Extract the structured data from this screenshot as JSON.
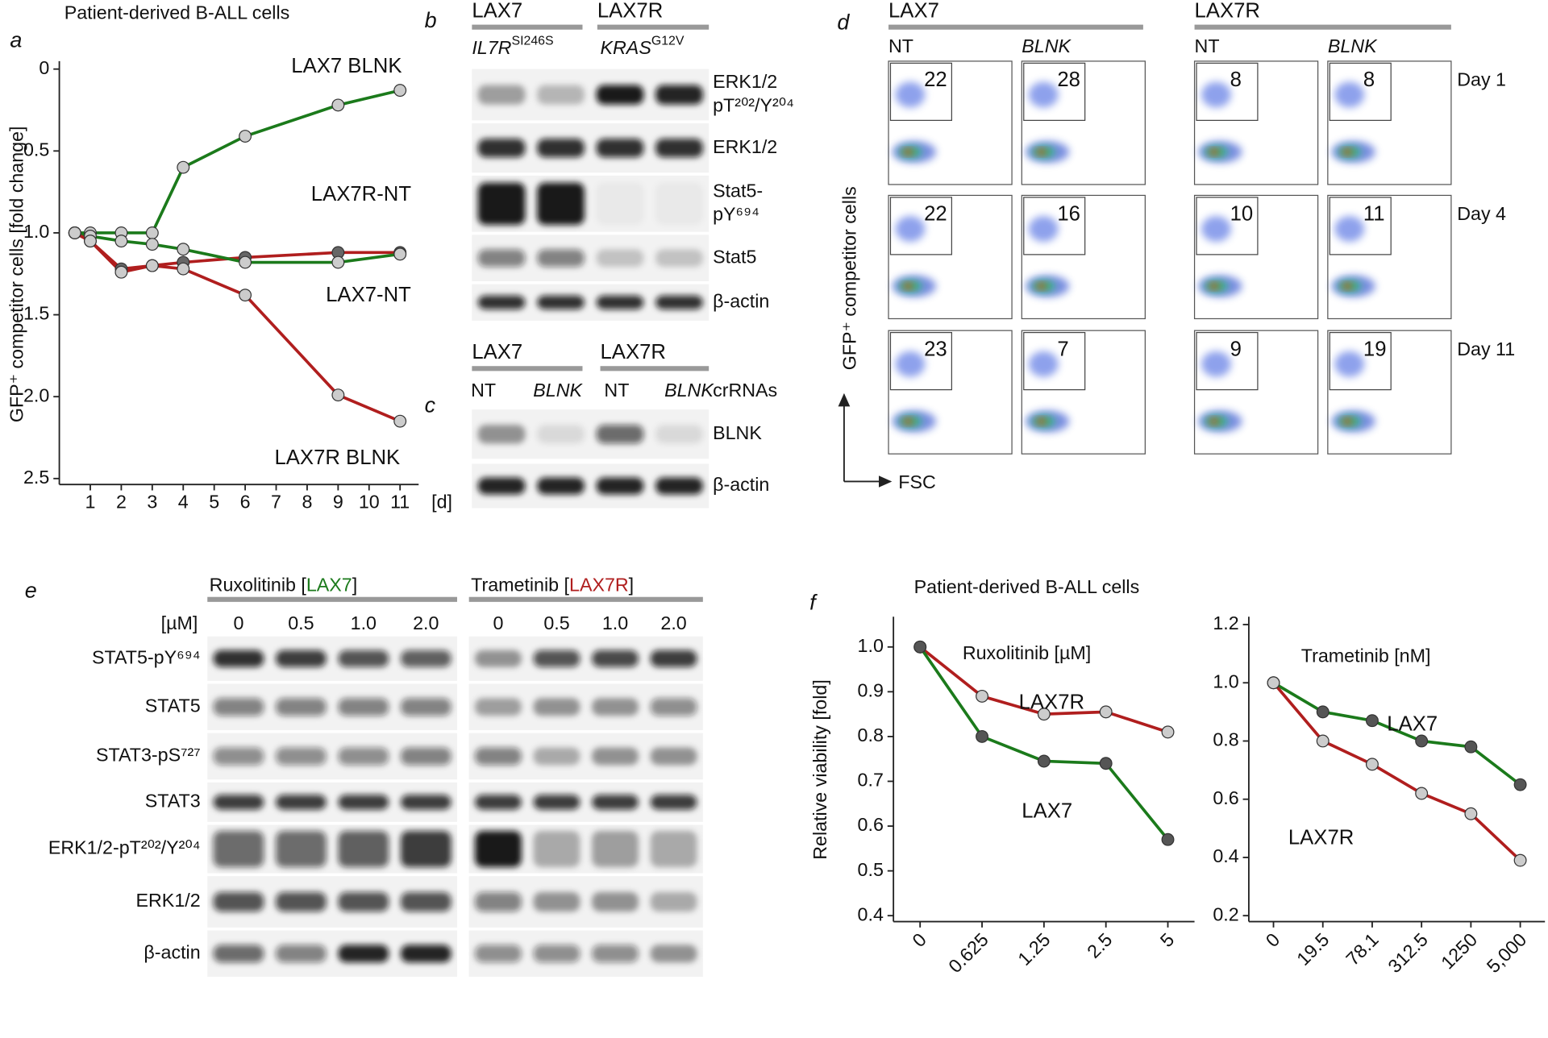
{
  "panel_labels": {
    "a": "a",
    "b": "b",
    "c": "c",
    "d": "d",
    "e": "e",
    "f": "f"
  },
  "chart_data": [
    {
      "type": "line",
      "title": "Patient-derived B-ALL cells",
      "y_label": "GFP⁺ competitor cells [fold change]",
      "x_label": "[d]",
      "x": [
        0.5,
        1,
        2,
        3,
        4,
        6,
        9,
        11
      ],
      "series": [
        {
          "name": "LAX7 BLNK",
          "color": "#1b7a1b",
          "values": [
            1.0,
            1.0,
            1.0,
            1.0,
            0.6,
            0.41,
            0.22,
            0.13
          ]
        },
        {
          "name": "LAX7R-NT",
          "color": "#b01e1e",
          "values": [
            1.0,
            1.05,
            1.22,
            1.2,
            1.18,
            1.15,
            1.12,
            1.12
          ]
        },
        {
          "name": "LAX7-NT",
          "color": "#1b7a1b",
          "values": [
            1.0,
            1.02,
            1.05,
            1.07,
            1.1,
            1.18,
            1.18,
            1.13
          ]
        },
        {
          "name": "LAX7R BLNK",
          "color": "#b01e1e",
          "values": [
            1.0,
            1.05,
            1.24,
            1.2,
            1.22,
            1.38,
            1.99,
            2.15
          ]
        }
      ],
      "xlim": [
        0,
        11.6
      ],
      "ylim": [
        2.5,
        0
      ],
      "xticks": [
        1,
        2,
        3,
        4,
        5,
        6,
        7,
        8,
        9,
        10,
        11
      ],
      "yticks": [
        0,
        0.5,
        {
          "value": 1,
          "label": "1.0"
        },
        1.5,
        {
          "value": 2,
          "label": "2.0"
        },
        2.5
      ]
    },
    {
      "type": "line",
      "title": "Patient-derived B-ALL cells",
      "subtitle": "Ruxolitinib [µM]",
      "y_label": "Relative viability [fold]",
      "categories": [
        "0",
        "0.625",
        "1.25",
        "2.5",
        "5"
      ],
      "series": [
        {
          "name": "LAX7R",
          "color": "#b01e1e",
          "values": [
            1.0,
            0.89,
            0.85,
            0.855,
            0.81
          ]
        },
        {
          "name": "LAX7",
          "color": "#1b7a1b",
          "values": [
            1.0,
            0.8,
            0.745,
            0.74,
            0.57
          ]
        }
      ],
      "ylim": [
        0.4,
        1.05
      ],
      "yticks": [
        0.4,
        0.5,
        0.6,
        0.7,
        0.8,
        0.9,
        {
          "value": 1,
          "label": "1.0"
        }
      ]
    },
    {
      "type": "line",
      "subtitle": "Trametinib [nM]",
      "categories": [
        "0",
        "19.5",
        "78.1",
        "312.5",
        "1250",
        "5,000"
      ],
      "series": [
        {
          "name": "LAX7",
          "color": "#1b7a1b",
          "values": [
            1.0,
            0.9,
            0.87,
            0.8,
            0.78,
            0.65
          ]
        },
        {
          "name": "LAX7R",
          "color": "#b01e1e",
          "values": [
            1.0,
            0.8,
            0.72,
            0.62,
            0.55,
            0.39
          ]
        }
      ],
      "ylim": [
        0.2,
        1.2
      ],
      "yticks": [
        0.2,
        0.4,
        0.6,
        0.8,
        {
          "value": 1,
          "label": "1.0"
        },
        1.2
      ]
    }
  ],
  "panel_b": {
    "groups": [
      {
        "name": "LAX7",
        "color": "#1b7a1b"
      },
      {
        "name": "LAX7R",
        "color": "#b01e1e"
      }
    ],
    "genotypes": [
      {
        "gene": "IL7R",
        "mutation": "SI246S"
      },
      {
        "gene": "KRAS",
        "mutation": "G12V"
      }
    ],
    "rows": [
      [
        "ERK1/2",
        "pT²⁰²/Y²⁰⁴"
      ],
      [
        "ERK1/2"
      ],
      [
        "Stat5-",
        "pY⁶⁹⁴"
      ],
      [
        "Stat5"
      ],
      [
        "β-actin"
      ]
    ]
  },
  "panel_c": {
    "groups": [
      {
        "name": "LAX7",
        "color": "#1b7a1b"
      },
      {
        "name": "LAX7R",
        "color": "#b01e1e"
      }
    ],
    "lanes": [
      "NT",
      "BLNK",
      "NT",
      "BLNK"
    ],
    "lane_note": "crRNAs",
    "rows": [
      "BLNK",
      "β-actin"
    ]
  },
  "panel_d": {
    "groups": [
      {
        "name": "LAX7",
        "color": "#1b7a1b"
      },
      {
        "name": "LAX7R",
        "color": "#b01e1e"
      }
    ],
    "lanes": [
      "NT",
      "BLNK",
      "NT",
      "BLNK"
    ],
    "days": [
      "Day 1",
      "Day 4",
      "Day 11"
    ],
    "percentages": [
      [
        22,
        28,
        8,
        8
      ],
      [
        22,
        16,
        10,
        11
      ],
      [
        23,
        7,
        9,
        19
      ]
    ],
    "y_label": "GFP⁺ competitor cells",
    "x_label": "FSC"
  },
  "panel_e": {
    "unit": "[µM]",
    "treatments": [
      {
        "parts": [
          {
            "text": "Ruxolitinib ["
          },
          {
            "text": "LAX7",
            "color": "#1b7a1b"
          },
          {
            "text": "]"
          }
        ],
        "concentrations": [
          "0",
          "0.5",
          "1.0",
          "2.0"
        ]
      },
      {
        "parts": [
          {
            "text": "Trametinib ["
          },
          {
            "text": "LAX7R",
            "color": "#b01e1e"
          },
          {
            "text": "]"
          }
        ],
        "concentrations": [
          "0",
          "0.5",
          "1.0",
          "2.0"
        ]
      }
    ],
    "rows": [
      "STAT5-pY⁶⁹⁴",
      "STAT5",
      "STAT3-pS⁷²⁷",
      "STAT3",
      "ERK1/2-pT²⁰²/Y²⁰⁴",
      "ERK1/2",
      "β-actin"
    ]
  }
}
